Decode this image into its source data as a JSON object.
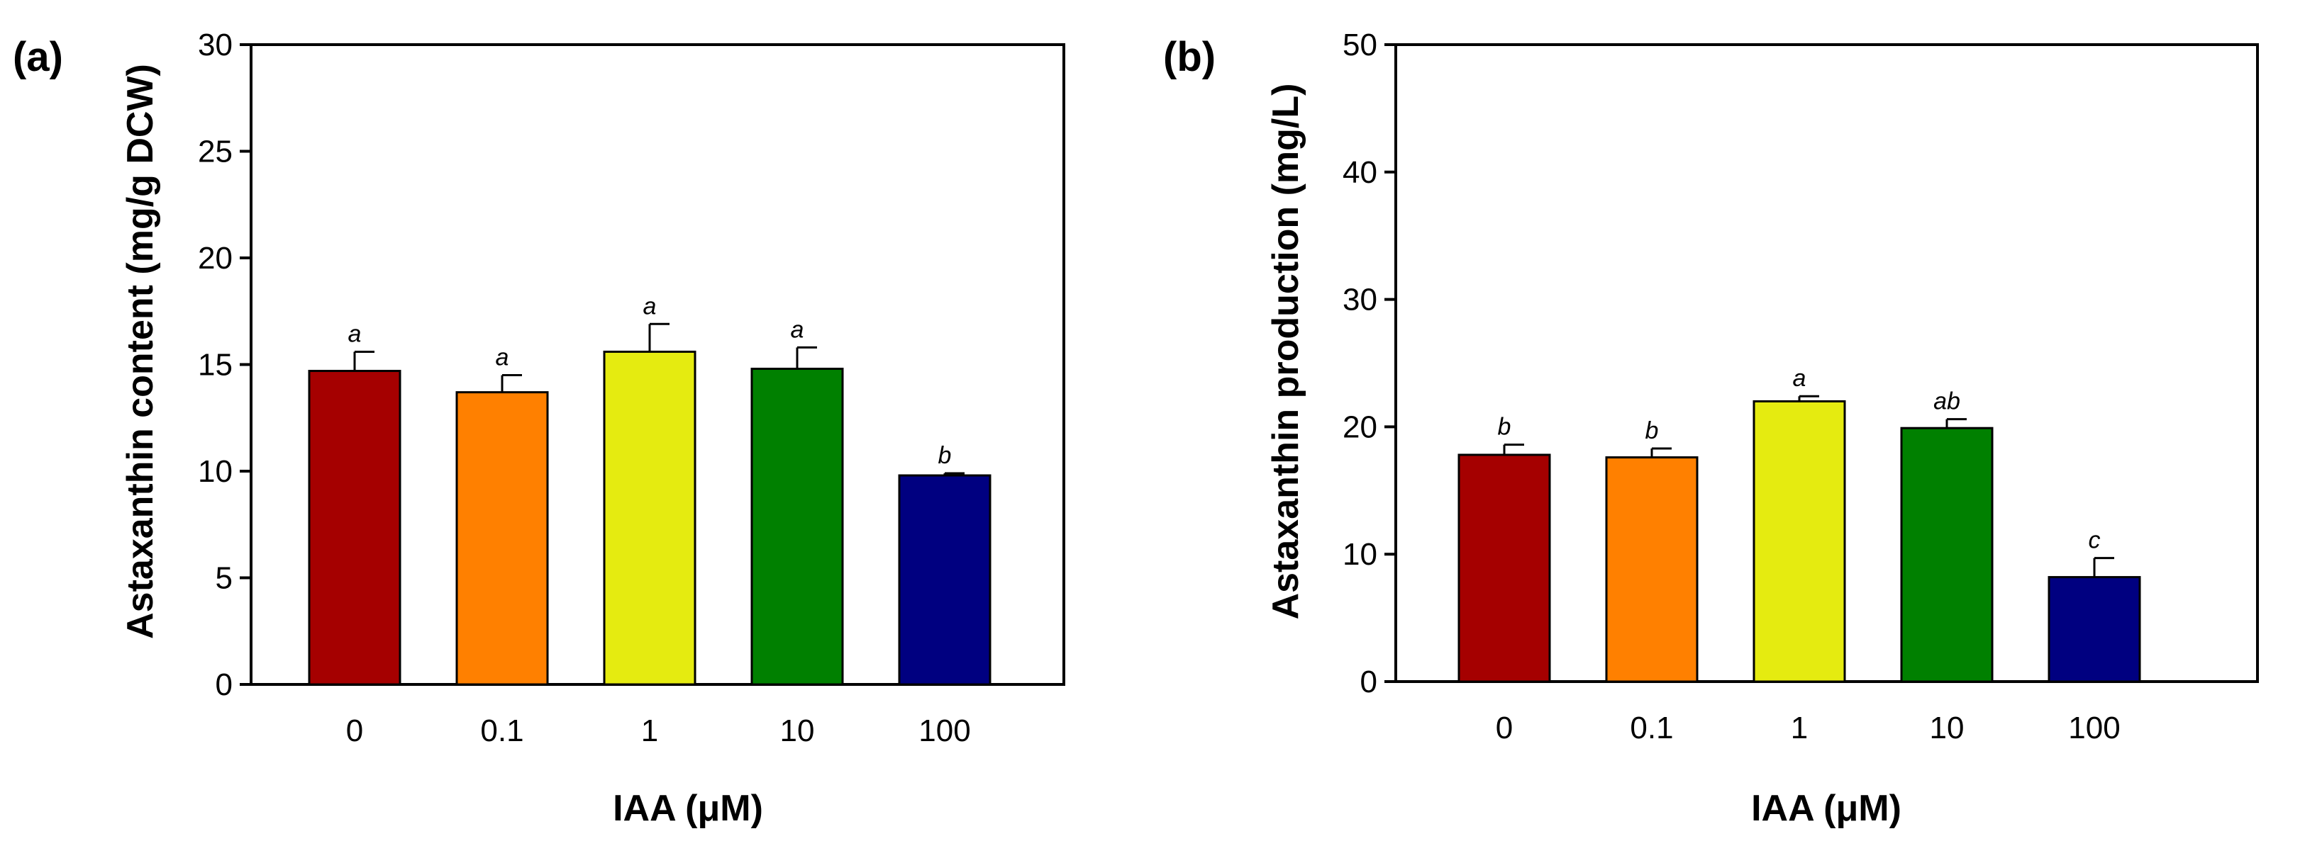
{
  "colors": {
    "bar_colors": [
      "#A50000",
      "#FF8000",
      "#E5EB10",
      "#008000",
      "#000080"
    ],
    "axis": "#000000"
  },
  "chart_data": [
    {
      "type": "bar",
      "panel_label": "(a)",
      "xlabel": "IAA (μM)",
      "ylabel": "Astaxanthin content (mg/g DCW)",
      "categories": [
        "0",
        "0.1",
        "1",
        "10",
        "100"
      ],
      "values": [
        14.7,
        13.7,
        15.6,
        14.8,
        9.8
      ],
      "errors": [
        0.9,
        0.8,
        1.3,
        1.0,
        0.1
      ],
      "significance": [
        "a",
        "a",
        "a",
        "a",
        "b"
      ],
      "ylim": [
        0,
        30
      ],
      "yticks": [
        0,
        5,
        10,
        15,
        20,
        25,
        30
      ],
      "ytick_labels": [
        "0",
        "5",
        "10",
        "15",
        "20",
        "25",
        "30"
      ]
    },
    {
      "type": "bar",
      "panel_label": "(b)",
      "xlabel": "IAA (μM)",
      "ylabel": "Astaxanthin production (mg/L)",
      "categories": [
        "0",
        "0.1",
        "1",
        "10",
        "100"
      ],
      "values": [
        17.8,
        17.6,
        22.0,
        19.9,
        8.2
      ],
      "errors": [
        0.8,
        0.7,
        0.4,
        0.7,
        1.5
      ],
      "significance": [
        "b",
        "b",
        "a",
        "ab",
        "c"
      ],
      "ylim": [
        0,
        50
      ],
      "yticks": [
        0,
        10,
        20,
        30,
        40,
        50
      ],
      "ytick_labels": [
        "0",
        "10",
        "20",
        "30",
        "40",
        "50"
      ]
    }
  ]
}
